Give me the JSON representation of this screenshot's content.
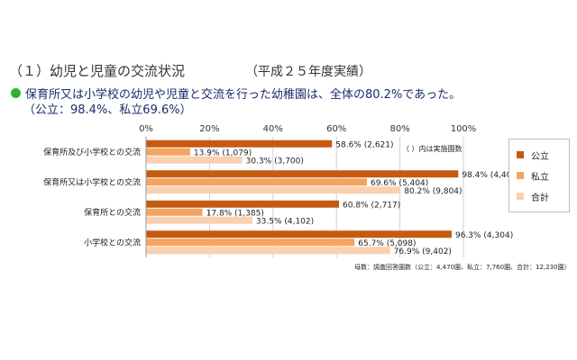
{
  "heading": {
    "title": "（１）幼児と児童の交流状況",
    "year_note": "（平成２５年度実績）"
  },
  "summary": {
    "line1": "保育所又は小学校の幼児や児童と交流を行った幼稚園は、全体の80.2%であった。",
    "line2": "（公立：98.4%、私立69.6%）"
  },
  "colors": {
    "public": "#c55a11",
    "private": "#f4a460",
    "total": "#fbd0b0",
    "grid": "#d0d0d0",
    "bullet": "#2fb12f"
  },
  "chart_data": {
    "type": "bar",
    "orientation": "horizontal",
    "xlim": [
      0,
      100
    ],
    "x_ticks": [
      "0%",
      "20%",
      "40%",
      "60%",
      "80%",
      "100%"
    ],
    "grid": true,
    "legend_position": "right",
    "note": "（ ）内は実施園数",
    "footnote": "母数：調査回答園数（公立：4,470園、私立：7,760園、合計：12,230園）",
    "categories": [
      "保育所及び小学校との交流",
      "保育所又は小学校との交流",
      "保育所との交流",
      "小学校との交流"
    ],
    "series": [
      {
        "name": "公立",
        "values": [
          58.6,
          98.4,
          60.8,
          96.3
        ],
        "labels": [
          "58.6% (2,621)",
          "98.4% (4,400)",
          "60.8% (2,717)",
          "96.3% (4,304)"
        ]
      },
      {
        "name": "私立",
        "values": [
          13.9,
          69.6,
          17.8,
          65.7
        ],
        "labels": [
          "13.9% (1,079)",
          "69.6% (5,404)",
          "17.8% (1,385)",
          "65.7% (5,098)"
        ]
      },
      {
        "name": "合計",
        "values": [
          30.3,
          80.2,
          33.5,
          76.9
        ],
        "labels": [
          "30.3% (3,700)",
          "80.2% (9,804)",
          "33.5% (4,102)",
          "76.9% (9,402)"
        ]
      }
    ]
  }
}
